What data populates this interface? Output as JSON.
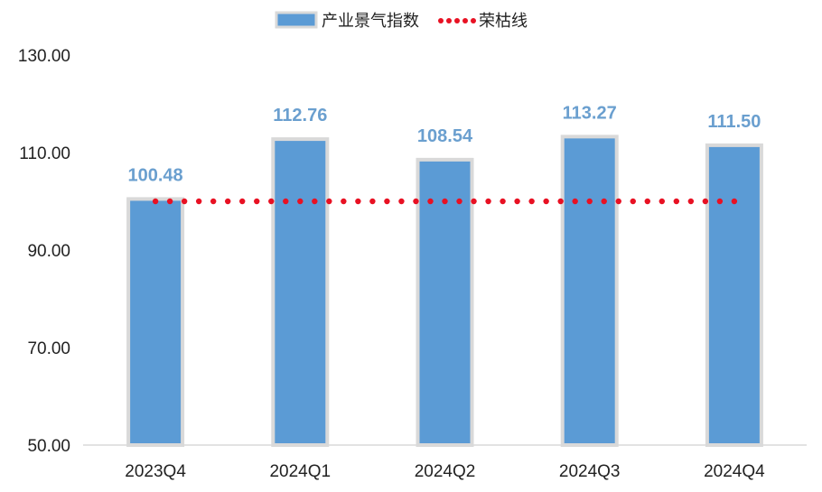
{
  "chart_data": {
    "type": "bar",
    "categories": [
      "2023Q4",
      "2024Q1",
      "2024Q2",
      "2024Q3",
      "2024Q4"
    ],
    "series": [
      {
        "name": "产业景气指数",
        "type": "bar",
        "values": [
          100.48,
          112.76,
          108.54,
          113.27,
          111.5
        ],
        "labels": [
          "100.48",
          "112.76",
          "108.54",
          "113.27",
          "111.50"
        ]
      },
      {
        "name": "荣枯线",
        "type": "line",
        "style": "dotted",
        "values": [
          100,
          100,
          100,
          100,
          100
        ]
      }
    ],
    "yticks": [
      "50.00",
      "70.00",
      "90.00",
      "110.00",
      "130.00"
    ],
    "ylim": [
      50,
      130
    ],
    "legend": "top-center",
    "grid": false,
    "colors": {
      "bar": "#5b9bd5",
      "bar_border": "#d9d9d9",
      "threshold": "#e81123",
      "label": "#6a9fcf"
    }
  }
}
